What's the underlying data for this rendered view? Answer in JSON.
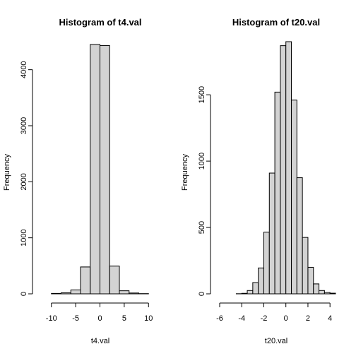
{
  "chart_data": [
    {
      "type": "bar",
      "title": "Histogram of t4.val",
      "xlabel": "t4.val",
      "ylabel": "Frequency",
      "xlim": [
        -12,
        12
      ],
      "ylim": [
        0,
        4500
      ],
      "x_ticks": [
        -10,
        -5,
        0,
        5,
        10
      ],
      "y_ticks": [
        0,
        1000,
        2000,
        3000,
        4000
      ],
      "bin_edges": [
        -12,
        -10,
        -8,
        -6,
        -4,
        -2,
        0,
        2,
        4,
        6,
        8,
        10
      ],
      "values": [
        0,
        8,
        18,
        70,
        480,
        4450,
        4430,
        495,
        55,
        15,
        4
      ]
    },
    {
      "type": "bar",
      "title": "Histogram of t20.val",
      "xlabel": "t20.val",
      "ylabel": "Frequency",
      "xlim": [
        -6,
        4.5
      ],
      "ylim": [
        0,
        1900
      ],
      "x_ticks": [
        -6,
        -4,
        -2,
        0,
        2,
        4
      ],
      "y_ticks": [
        0,
        500,
        1000,
        1500
      ],
      "bin_edges": [
        -5.5,
        -5,
        -4.5,
        -4,
        -3.5,
        -3,
        -2.5,
        -2,
        -1.5,
        -1,
        -0.5,
        0,
        0.5,
        1,
        1.5,
        2,
        2.5,
        3,
        3.5,
        4,
        4.5
      ],
      "values": [
        0,
        0,
        1,
        4,
        25,
        85,
        195,
        465,
        910,
        1520,
        1870,
        1900,
        1460,
        875,
        425,
        200,
        75,
        25,
        10,
        5
      ]
    }
  ]
}
